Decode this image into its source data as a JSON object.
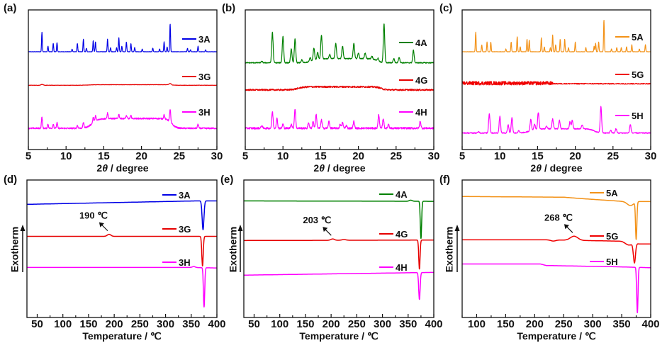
{
  "chart_data": [
    {
      "panel": "(a)",
      "type": "line",
      "xlabel_prefix": "2",
      "xlabel_theta": "θ",
      "xlabel_suffix": " / degree",
      "xlim": [
        5,
        30
      ],
      "xticks": [
        "5",
        "10",
        "15",
        "20",
        "25",
        "30"
      ],
      "xtick_values": [
        5,
        10,
        15,
        20,
        25,
        30
      ],
      "ylim": [
        0,
        100
      ],
      "series": [
        {
          "name": "3A",
          "color": "#0000e6",
          "offset": 70,
          "peak_width": 0.07,
          "noise": [
            [
              5,
              0.25
            ]
          ],
          "hump": null,
          "peaks": [
            [
              6.8,
              14
            ],
            [
              7.6,
              4
            ],
            [
              8.3,
              6
            ],
            [
              8.8,
              6.5
            ],
            [
              10.8,
              2
            ],
            [
              11.5,
              6
            ],
            [
              12.3,
              9
            ],
            [
              12.7,
              2.5
            ],
            [
              13.6,
              8
            ],
            [
              13.9,
              7
            ],
            [
              15.5,
              9
            ],
            [
              15.9,
              3
            ],
            [
              16.7,
              3
            ],
            [
              17.0,
              10
            ],
            [
              17.4,
              4
            ],
            [
              18.0,
              7
            ],
            [
              18.6,
              6
            ],
            [
              19.1,
              3
            ],
            [
              20.1,
              2
            ],
            [
              21.5,
              2.5
            ],
            [
              22.4,
              2
            ],
            [
              23.0,
              7
            ],
            [
              23.4,
              3.5
            ],
            [
              23.8,
              20
            ],
            [
              26.1,
              2.5
            ],
            [
              26.5,
              1.5
            ],
            [
              27.5,
              4
            ],
            [
              28.5,
              1.5
            ]
          ]
        },
        {
          "name": "3G",
          "color": "#e60000",
          "offset": 46,
          "peak_width": 0.2,
          "noise": [
            [
              5,
              0.2
            ]
          ],
          "hump": [
            13,
            24,
            0.4
          ],
          "peaks": [
            [
              6.8,
              0.6
            ],
            [
              23.8,
              1
            ]
          ]
        },
        {
          "name": "3H",
          "color": "#ff00ff",
          "offset": 15,
          "peak_width": 0.1,
          "noise": [
            [
              5,
              1.0
            ]
          ],
          "hump": [
            13.5,
            24,
            7
          ],
          "peaks": [
            [
              6.8,
              8
            ],
            [
              7.6,
              3
            ],
            [
              8.3,
              3
            ],
            [
              8.8,
              4
            ],
            [
              11.5,
              2
            ],
            [
              12.3,
              4
            ],
            [
              13.6,
              4
            ],
            [
              13.9,
              4
            ],
            [
              15.5,
              4
            ],
            [
              17.0,
              3
            ],
            [
              18.0,
              2
            ],
            [
              18.6,
              2
            ],
            [
              23.0,
              3
            ],
            [
              23.8,
              9
            ],
            [
              27.5,
              3
            ]
          ]
        }
      ]
    },
    {
      "panel": "(b)",
      "type": "line",
      "xlabel_prefix": "2",
      "xlabel_theta": "θ",
      "xlabel_suffix": " / degree",
      "xlim": [
        5,
        30
      ],
      "xticks": [
        "5",
        "10",
        "15",
        "20",
        "25",
        "30"
      ],
      "xtick_values": [
        5,
        10,
        15,
        20,
        25,
        30
      ],
      "ylim": [
        0,
        100
      ],
      "series": [
        {
          "name": "4A",
          "color": "#008000",
          "offset": 62,
          "peak_width": 0.13,
          "noise": [
            [
              5,
              0.7
            ]
          ],
          "hump": [
            14,
            22.5,
            3
          ],
          "peaks": [
            [
              7.2,
              1
            ],
            [
              8.6,
              22
            ],
            [
              10.0,
              19
            ],
            [
              11.1,
              10
            ],
            [
              11.6,
              17
            ],
            [
              12.5,
              2
            ],
            [
              13.6,
              3
            ],
            [
              14.1,
              9
            ],
            [
              14.6,
              5
            ],
            [
              15.1,
              17
            ],
            [
              16.2,
              3
            ],
            [
              17.0,
              11
            ],
            [
              17.9,
              9
            ],
            [
              19.4,
              11
            ],
            [
              20.0,
              4
            ],
            [
              20.9,
              4
            ],
            [
              21.8,
              2
            ],
            [
              22.6,
              2
            ],
            [
              23.4,
              28
            ],
            [
              24.7,
              3
            ],
            [
              25.4,
              4
            ],
            [
              27.3,
              9
            ]
          ]
        },
        {
          "name": "4G",
          "color": "#e60000",
          "offset": 42.5,
          "peak_width": 0.2,
          "noise": [
            [
              5,
              1.1
            ]
          ],
          "hump": [
            12,
            23,
            2.2
          ],
          "peaks": []
        },
        {
          "name": "4H",
          "color": "#ff00ff",
          "offset": 15,
          "peak_width": 0.12,
          "noise": [
            [
              5,
              1.3
            ]
          ],
          "hump": null,
          "peaks": [
            [
              7.2,
              2
            ],
            [
              8.6,
              12
            ],
            [
              9.2,
              7
            ],
            [
              10.0,
              3
            ],
            [
              11.1,
              3
            ],
            [
              11.6,
              14
            ],
            [
              13.4,
              4
            ],
            [
              14.0,
              5
            ],
            [
              14.4,
              10
            ],
            [
              15.1,
              6
            ],
            [
              16.1,
              5
            ],
            [
              17.6,
              3
            ],
            [
              17.9,
              4
            ],
            [
              18.4,
              2
            ],
            [
              19.4,
              5
            ],
            [
              22.7,
              10
            ],
            [
              23.3,
              7
            ],
            [
              24.0,
              3
            ],
            [
              28.2,
              5
            ]
          ]
        }
      ]
    },
    {
      "panel": "(c)",
      "type": "line",
      "xlabel_prefix": "2",
      "xlabel_theta": "θ",
      "xlabel_suffix": " / degree",
      "xlim": [
        5,
        30
      ],
      "xticks": [
        "5",
        "10",
        "15",
        "20",
        "25",
        "30"
      ],
      "xtick_values": [
        5,
        10,
        15,
        20,
        25,
        30
      ],
      "ylim": [
        0,
        100
      ],
      "series": [
        {
          "name": "5A",
          "color": "#f39218",
          "offset": 70,
          "peak_width": 0.07,
          "noise": [
            [
              5,
              0.2
            ]
          ],
          "hump": null,
          "peaks": [
            [
              6.8,
              14
            ],
            [
              7.6,
              5
            ],
            [
              8.3,
              7
            ],
            [
              8.8,
              7
            ],
            [
              10.8,
              2
            ],
            [
              11.5,
              7
            ],
            [
              12.3,
              11
            ],
            [
              12.7,
              3.5
            ],
            [
              13.6,
              9
            ],
            [
              13.9,
              8.5
            ],
            [
              15.5,
              10
            ],
            [
              15.9,
              3.5
            ],
            [
              16.7,
              3
            ],
            [
              17.0,
              12
            ],
            [
              17.4,
              5
            ],
            [
              18.0,
              9
            ],
            [
              18.6,
              9
            ],
            [
              19.1,
              3
            ],
            [
              20.0,
              7
            ],
            [
              21.4,
              3
            ],
            [
              22.5,
              4
            ],
            [
              22.7,
              6
            ],
            [
              23.1,
              7
            ],
            [
              23.8,
              23
            ],
            [
              24.8,
              2
            ],
            [
              25.5,
              3
            ],
            [
              26.1,
              3
            ],
            [
              26.8,
              3.5
            ],
            [
              27.5,
              5
            ],
            [
              28.5,
              2
            ],
            [
              29.3,
              5
            ]
          ]
        },
        {
          "name": "5G",
          "color": "#f00000",
          "offset": 47,
          "peak_width": 0.2,
          "noise": [
            [
              5,
              2.6
            ],
            [
              17,
              0.7
            ]
          ],
          "hump": null,
          "peaks": []
        },
        {
          "name": "5H",
          "color": "#ff00ff",
          "offset": 11.7,
          "peak_width": 0.13,
          "noise": [
            [
              5,
              0.7
            ]
          ],
          "hump": [
            14,
            22.5,
            3
          ],
          "peaks": [
            [
              7.2,
              1
            ],
            [
              8.6,
              14
            ],
            [
              10.0,
              12
            ],
            [
              11.1,
              6
            ],
            [
              11.6,
              11
            ],
            [
              12.5,
              1.5
            ],
            [
              14.1,
              8
            ],
            [
              14.6,
              4
            ],
            [
              15.1,
              12
            ],
            [
              16.2,
              2
            ],
            [
              17.0,
              7
            ],
            [
              17.9,
              6
            ],
            [
              19.3,
              5
            ],
            [
              19.6,
              6
            ],
            [
              20.9,
              3
            ],
            [
              23.4,
              19
            ],
            [
              24.7,
              2
            ],
            [
              25.4,
              3
            ],
            [
              27.3,
              6
            ]
          ]
        }
      ]
    },
    {
      "panel": "(d)",
      "type": "line",
      "ylabel": "Exotherm",
      "xlabel": "Temperature / ℃",
      "xlim": [
        30,
        400
      ],
      "xticks": [
        "50",
        "100",
        "150",
        "200",
        "250",
        "300",
        "350",
        "400"
      ],
      "xtick_values": [
        50,
        100,
        150,
        200,
        250,
        300,
        350,
        400
      ],
      "ylim": [
        0,
        100
      ],
      "series": [
        {
          "name": "3A",
          "color": "#0000e6",
          "baseline": [
            [
              30,
              82.3
            ],
            [
              360,
              84.8
            ],
            [
              400,
              84.8
            ]
          ],
          "features": [
            [
              373,
              -21,
              2.5
            ]
          ]
        },
        {
          "name": "3G",
          "color": "#e60000",
          "baseline": [
            [
              30,
              59
            ],
            [
              400,
              59
            ]
          ],
          "features": [
            [
              190,
              1.5,
              5
            ],
            [
              372,
              -21.5,
              2
            ]
          ]
        },
        {
          "name": "3H",
          "color": "#ff00ff",
          "baseline": [
            [
              30,
              36.4
            ],
            [
              350,
              36.4
            ],
            [
              400,
              36
            ]
          ],
          "features": [
            [
              355,
              0.7,
              4
            ],
            [
              375,
              -28.5,
              1.8
            ]
          ]
        }
      ],
      "annotation": {
        "text": "190 ℃",
        "x": 190,
        "series": "3G"
      }
    },
    {
      "panel": "(e)",
      "type": "line",
      "ylabel": "Exotherm",
      "xlabel": "Temperature / ℃",
      "xlim": [
        30,
        400
      ],
      "xticks": [
        "50",
        "100",
        "150",
        "200",
        "250",
        "300",
        "350",
        "400"
      ],
      "xtick_values": [
        50,
        100,
        150,
        200,
        250,
        300,
        350,
        400
      ],
      "ylim": [
        0,
        100
      ],
      "series": [
        {
          "name": "4A",
          "color": "#008000",
          "baseline": [
            [
              30,
              84.8
            ],
            [
              400,
              84.5
            ]
          ],
          "features": [
            [
              355,
              0.8,
              4
            ],
            [
              375,
              -27,
              1.8
            ]
          ]
        },
        {
          "name": "4G",
          "color": "#e60000",
          "baseline": [
            [
              30,
              56
            ],
            [
              400,
              56.3
            ]
          ],
          "features": [
            [
              203,
              1,
              5
            ],
            [
              225,
              0.5,
              6
            ],
            [
              372,
              -21,
              1.8
            ]
          ]
        },
        {
          "name": "4H",
          "color": "#ff00ff",
          "baseline": [
            [
              30,
              30.8
            ],
            [
              400,
              32.8
            ]
          ],
          "features": [
            [
              372,
              -19.5,
              2
            ]
          ]
        }
      ],
      "annotation": {
        "text": "203 ℃",
        "x": 203,
        "series": "4G"
      }
    },
    {
      "panel": "(f)",
      "type": "line",
      "ylabel": "Exotherm",
      "xlabel": "Temperature / ℃",
      "xlim": [
        75,
        400
      ],
      "xticks": [
        "100",
        "150",
        "200",
        "250",
        "300",
        "350",
        "400"
      ],
      "xtick_values": [
        100,
        150,
        200,
        250,
        300,
        350,
        400
      ],
      "ylim": [
        0,
        100
      ],
      "series": [
        {
          "name": "5A",
          "color": "#f39218",
          "baseline": [
            [
              75,
              88
            ],
            [
              250,
              87.5
            ],
            [
              280,
              86.5
            ],
            [
              350,
              84.5
            ],
            [
              400,
              84.3
            ]
          ],
          "features": [
            [
              365,
              -3,
              8
            ],
            [
              375,
              -27,
              1.6
            ]
          ]
        },
        {
          "name": "5G",
          "color": "#f00000",
          "baseline": [
            [
              75,
              56.5
            ],
            [
              220,
              56.5
            ],
            [
              350,
              55.5
            ],
            [
              380,
              53.5
            ],
            [
              400,
              53.5
            ]
          ],
          "features": [
            [
              232,
              -0.8,
              6
            ],
            [
              268,
              3,
              9
            ],
            [
              362,
              -2,
              8
            ],
            [
              372,
              -14,
              2.5
            ]
          ]
        },
        {
          "name": "5H",
          "color": "#ff00ff",
          "baseline": [
            [
              75,
              38.9
            ],
            [
              210,
              38.9
            ],
            [
              220,
              37.8
            ],
            [
              340,
              36.9
            ],
            [
              400,
              36.2
            ]
          ],
          "features": [
            [
              377,
              -33,
              1.6
            ]
          ]
        }
      ],
      "annotation": {
        "text": "268 ℃",
        "x": 268,
        "series": "5G"
      }
    }
  ]
}
